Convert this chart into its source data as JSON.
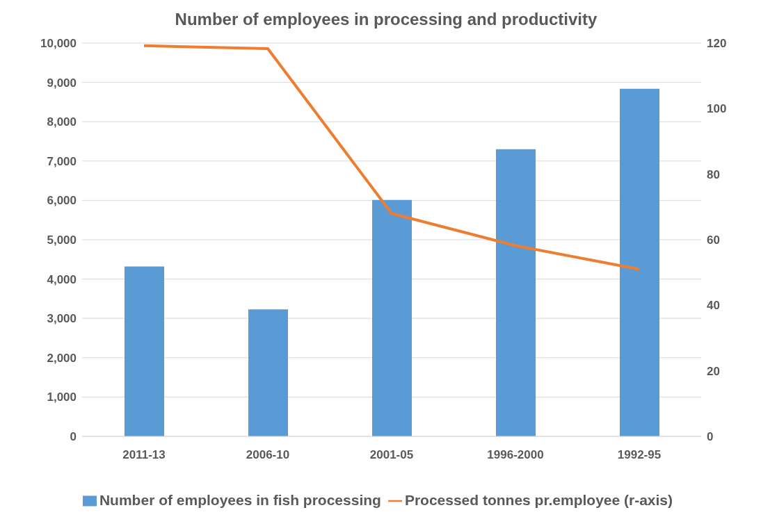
{
  "chart_data": {
    "type": "bar",
    "title": "Number of employees in processing and productivity",
    "categories": [
      "2011-13",
      "2006-10",
      "2001-05",
      "1996-2000",
      "1992-95"
    ],
    "series": [
      {
        "name": "Number of employees in fish processing",
        "color": "#5b9bd5",
        "values": [
          4320,
          3230,
          6010,
          7300,
          8840
        ]
      },
      {
        "name": "Processed tonnes pr.employee (r-axis)",
        "type": "line",
        "axis": "y2",
        "color": "#ed7d31",
        "values": [
          119.2,
          118.3,
          68.0,
          58.2,
          51.0
        ]
      }
    ],
    "ylim": [
      0,
      10000
    ],
    "yticks": [
      {
        "value": 0,
        "label": "0"
      },
      {
        "value": 1000,
        "label": "1,000"
      },
      {
        "value": 2000,
        "label": "2,000"
      },
      {
        "value": 3000,
        "label": "3,000"
      },
      {
        "value": 4000,
        "label": "4,000"
      },
      {
        "value": 5000,
        "label": "5,000"
      },
      {
        "value": 6000,
        "label": "6,000"
      },
      {
        "value": 7000,
        "label": "7,000"
      },
      {
        "value": 8000,
        "label": "8,000"
      },
      {
        "value": 9000,
        "label": "9,000"
      },
      {
        "value": 10000,
        "label": "10,000"
      }
    ],
    "y2lim": [
      0,
      120
    ],
    "y2ticks": [
      0,
      20,
      40,
      60,
      80,
      100,
      120
    ],
    "grid": "y",
    "legend": "bottom",
    "marker": "none",
    "line_style": "solid"
  }
}
